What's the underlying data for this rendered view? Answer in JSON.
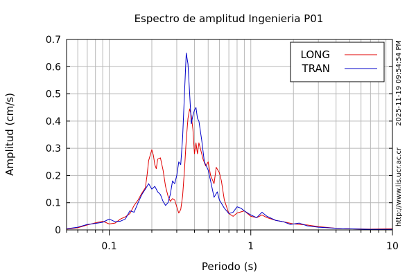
{
  "chart_data": {
    "type": "line",
    "title": "Espectro de amplitud Ingenieria P01",
    "xlabel": "Periodo (s)",
    "ylabel": "Amplitud (cm/s)",
    "x_scale": "log",
    "xlim": [
      0.05,
      10
    ],
    "ylim": [
      0,
      0.7
    ],
    "x_ticks": [
      {
        "value": 0.1,
        "label": "0.1"
      },
      {
        "value": 1,
        "label": "1"
      },
      {
        "value": 10,
        "label": "10"
      }
    ],
    "y_ticks": [
      {
        "value": 0,
        "label": "0"
      },
      {
        "value": 0.1,
        "label": "0.1"
      },
      {
        "value": 0.2,
        "label": "0.2"
      },
      {
        "value": 0.3,
        "label": "0.3"
      },
      {
        "value": 0.4,
        "label": "0.4"
      },
      {
        "value": 0.5,
        "label": "0.5"
      },
      {
        "value": 0.6,
        "label": "0.6"
      },
      {
        "value": 0.7,
        "label": "0.7"
      }
    ],
    "grid": true,
    "legend_position": "top-right",
    "series": [
      {
        "name": "LONG",
        "color": "#e00000",
        "points": [
          [
            0.05,
            0.003
          ],
          [
            0.06,
            0.008
          ],
          [
            0.07,
            0.018
          ],
          [
            0.08,
            0.026
          ],
          [
            0.09,
            0.032
          ],
          [
            0.1,
            0.022
          ],
          [
            0.11,
            0.025
          ],
          [
            0.12,
            0.04
          ],
          [
            0.13,
            0.048
          ],
          [
            0.14,
            0.06
          ],
          [
            0.15,
            0.09
          ],
          [
            0.16,
            0.11
          ],
          [
            0.17,
            0.135
          ],
          [
            0.18,
            0.155
          ],
          [
            0.185,
            0.2
          ],
          [
            0.19,
            0.255
          ],
          [
            0.2,
            0.295
          ],
          [
            0.205,
            0.275
          ],
          [
            0.21,
            0.24
          ],
          [
            0.215,
            0.225
          ],
          [
            0.22,
            0.26
          ],
          [
            0.23,
            0.265
          ],
          [
            0.24,
            0.22
          ],
          [
            0.25,
            0.16
          ],
          [
            0.26,
            0.125
          ],
          [
            0.27,
            0.105
          ],
          [
            0.28,
            0.115
          ],
          [
            0.29,
            0.11
          ],
          [
            0.3,
            0.085
          ],
          [
            0.31,
            0.062
          ],
          [
            0.32,
            0.075
          ],
          [
            0.33,
            0.125
          ],
          [
            0.34,
            0.22
          ],
          [
            0.35,
            0.33
          ],
          [
            0.36,
            0.41
          ],
          [
            0.37,
            0.445
          ],
          [
            0.38,
            0.42
          ],
          [
            0.39,
            0.37
          ],
          [
            0.4,
            0.28
          ],
          [
            0.41,
            0.32
          ],
          [
            0.42,
            0.28
          ],
          [
            0.43,
            0.32
          ],
          [
            0.44,
            0.3
          ],
          [
            0.46,
            0.26
          ],
          [
            0.48,
            0.235
          ],
          [
            0.5,
            0.25
          ],
          [
            0.52,
            0.2
          ],
          [
            0.55,
            0.17
          ],
          [
            0.57,
            0.23
          ],
          [
            0.6,
            0.21
          ],
          [
            0.62,
            0.18
          ],
          [
            0.65,
            0.11
          ],
          [
            0.7,
            0.06
          ],
          [
            0.75,
            0.05
          ],
          [
            0.8,
            0.062
          ],
          [
            0.9,
            0.07
          ],
          [
            1.0,
            0.05
          ],
          [
            1.1,
            0.045
          ],
          [
            1.2,
            0.055
          ],
          [
            1.3,
            0.045
          ],
          [
            1.5,
            0.035
          ],
          [
            1.7,
            0.03
          ],
          [
            2.0,
            0.022
          ],
          [
            2.5,
            0.018
          ],
          [
            3.0,
            0.012
          ],
          [
            4.0,
            0.006
          ],
          [
            5.0,
            0.004
          ],
          [
            7.0,
            0.003
          ],
          [
            10.0,
            0.004
          ]
        ]
      },
      {
        "name": "TRAN",
        "color": "#0000c8",
        "points": [
          [
            0.05,
            0.004
          ],
          [
            0.06,
            0.01
          ],
          [
            0.07,
            0.02
          ],
          [
            0.08,
            0.024
          ],
          [
            0.09,
            0.028
          ],
          [
            0.1,
            0.04
          ],
          [
            0.11,
            0.03
          ],
          [
            0.12,
            0.032
          ],
          [
            0.13,
            0.04
          ],
          [
            0.14,
            0.07
          ],
          [
            0.15,
            0.065
          ],
          [
            0.16,
            0.1
          ],
          [
            0.17,
            0.13
          ],
          [
            0.18,
            0.15
          ],
          [
            0.19,
            0.17
          ],
          [
            0.2,
            0.15
          ],
          [
            0.21,
            0.16
          ],
          [
            0.22,
            0.14
          ],
          [
            0.23,
            0.13
          ],
          [
            0.24,
            0.105
          ],
          [
            0.25,
            0.09
          ],
          [
            0.26,
            0.1
          ],
          [
            0.27,
            0.13
          ],
          [
            0.28,
            0.18
          ],
          [
            0.29,
            0.17
          ],
          [
            0.3,
            0.2
          ],
          [
            0.31,
            0.25
          ],
          [
            0.32,
            0.24
          ],
          [
            0.33,
            0.34
          ],
          [
            0.34,
            0.5
          ],
          [
            0.35,
            0.65
          ],
          [
            0.36,
            0.61
          ],
          [
            0.37,
            0.5
          ],
          [
            0.38,
            0.39
          ],
          [
            0.39,
            0.42
          ],
          [
            0.4,
            0.44
          ],
          [
            0.41,
            0.45
          ],
          [
            0.42,
            0.41
          ],
          [
            0.43,
            0.4
          ],
          [
            0.45,
            0.33
          ],
          [
            0.47,
            0.25
          ],
          [
            0.5,
            0.22
          ],
          [
            0.52,
            0.18
          ],
          [
            0.55,
            0.12
          ],
          [
            0.58,
            0.14
          ],
          [
            0.6,
            0.11
          ],
          [
            0.65,
            0.08
          ],
          [
            0.7,
            0.06
          ],
          [
            0.75,
            0.065
          ],
          [
            0.8,
            0.085
          ],
          [
            0.85,
            0.08
          ],
          [
            0.9,
            0.07
          ],
          [
            1.0,
            0.055
          ],
          [
            1.1,
            0.045
          ],
          [
            1.2,
            0.065
          ],
          [
            1.3,
            0.05
          ],
          [
            1.5,
            0.035
          ],
          [
            1.7,
            0.03
          ],
          [
            1.9,
            0.02
          ],
          [
            2.2,
            0.025
          ],
          [
            2.5,
            0.015
          ],
          [
            3.0,
            0.01
          ],
          [
            4.0,
            0.006
          ],
          [
            5.0,
            0.004
          ],
          [
            7.0,
            0.002
          ],
          [
            10.0,
            0.002
          ]
        ]
      }
    ]
  },
  "side_text": {
    "timestamp": "2025-11-19 09:54:54 PM",
    "url": "http://www.lis.ucr.ac.cr"
  }
}
